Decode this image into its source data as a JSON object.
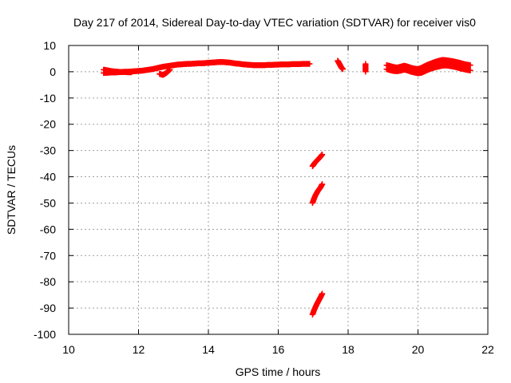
{
  "chart_data": {
    "type": "scatter",
    "title": "Day 217 of 2014, Sidereal Day-to-day VTEC variation (SDTVAR) for receiver vis0",
    "xlabel": "GPS time / hours",
    "ylabel": "SDTVAR / TECUs",
    "xlim": [
      10,
      22
    ],
    "ylim": [
      -100,
      10
    ],
    "x_ticks": [
      "10",
      "12",
      "14",
      "16",
      "18",
      "20",
      "22"
    ],
    "y_ticks": [
      "10",
      "0",
      "-10",
      "-20",
      "-30",
      "-40",
      "-50",
      "-60",
      "-70",
      "-80",
      "-90",
      "-100"
    ],
    "grid": true,
    "marker": "+",
    "color": "#ff0000",
    "series": [
      {
        "segments": [
          {
            "x": [
              11.0,
              11.1,
              11.2,
              11.3,
              11.4,
              11.5,
              11.6,
              11.7,
              11.8,
              11.9,
              12.0,
              12.1,
              12.2,
              12.3,
              12.4,
              12.5,
              12.6,
              12.7,
              12.8,
              12.9,
              13.0,
              13.1,
              13.2,
              13.3,
              13.4,
              13.5,
              13.6,
              13.7,
              13.8,
              13.9,
              14.0,
              14.1,
              14.2,
              14.3,
              14.4,
              14.5,
              14.6,
              14.7,
              14.8,
              14.9,
              15.0,
              15.1,
              15.2,
              15.3,
              15.4,
              15.5,
              15.6,
              15.7,
              15.8,
              15.9,
              16.0,
              16.1,
              16.2,
              16.3,
              16.4,
              16.5,
              16.6,
              16.7,
              16.8,
              16.9
            ],
            "y": [
              -0.5,
              -0.4,
              -0.3,
              -0.3,
              -0.2,
              -0.1,
              0.0,
              0.0,
              0.1,
              0.2,
              0.3,
              0.4,
              0.6,
              0.8,
              1.0,
              1.3,
              1.6,
              1.9,
              2.1,
              2.3,
              2.5,
              2.7,
              2.8,
              2.9,
              3.0,
              3.0,
              3.1,
              3.2,
              3.2,
              3.3,
              3.4,
              3.5,
              3.6,
              3.7,
              3.7,
              3.6,
              3.5,
              3.3,
              3.1,
              3.0,
              2.8,
              2.7,
              2.6,
              2.5,
              2.5,
              2.5,
              2.5,
              2.6,
              2.6,
              2.7,
              2.7,
              2.8,
              2.8,
              2.8,
              2.9,
              2.9,
              2.9,
              3.0,
              3.0,
              3.0
            ]
          },
          {
            "x": [
              11.0,
              11.08,
              11.16,
              11.24,
              11.32,
              11.4,
              11.5,
              11.6,
              11.7,
              11.8
            ],
            "y": [
              0.8,
              0.6,
              0.4,
              0.2,
              0.1,
              0.0,
              -0.1,
              -0.1,
              -0.2,
              -0.2
            ]
          },
          {
            "x": [
              12.6,
              12.65,
              12.7,
              12.75,
              12.8,
              12.85,
              12.9
            ],
            "y": [
              -0.8,
              -1.0,
              -1.2,
              -0.8,
              -0.4,
              0.2,
              0.8
            ]
          },
          {
            "x": [
              17.7,
              17.73,
              17.76,
              17.79,
              17.82,
              17.85
            ],
            "y": [
              4.2,
              3.5,
              2.8,
              2.0,
              1.4,
              1.0
            ]
          },
          {
            "x": [
              18.5,
              18.5,
              18.5
            ],
            "y": [
              3.0,
              1.5,
              0.0
            ]
          },
          {
            "x": [
              19.1,
              19.2,
              19.3,
              19.4,
              19.5,
              19.6,
              19.7,
              19.8,
              19.9,
              20.0,
              20.1,
              20.2,
              20.3,
              20.4,
              20.5,
              20.6,
              20.7,
              20.8,
              20.9,
              21.0,
              21.1,
              21.2,
              21.3,
              21.4,
              21.5
            ],
            "y": [
              2.5,
              2.2,
              1.8,
              1.6,
              1.9,
              2.3,
              2.0,
              1.5,
              1.2,
              1.0,
              1.5,
              2.2,
              2.8,
              3.3,
              3.8,
              4.2,
              4.5,
              4.4,
              4.2,
              4.0,
              3.7,
              3.4,
              3.0,
              2.7,
              2.5
            ]
          },
          {
            "x": [
              19.1,
              19.2,
              19.3,
              19.4,
              19.5,
              19.6,
              19.7,
              19.8,
              19.9,
              20.0,
              20.1,
              20.2,
              20.3,
              20.4,
              20.5,
              20.6,
              20.7,
              20.8,
              20.9,
              21.0,
              21.1,
              21.2,
              21.3,
              21.4,
              21.5
            ],
            "y": [
              1.0,
              0.6,
              0.3,
              0.2,
              0.4,
              0.8,
              0.5,
              0.0,
              -0.3,
              -0.6,
              -0.4,
              0.2,
              0.8,
              1.3,
              1.7,
              2.0,
              2.3,
              2.4,
              2.2,
              2.0,
              1.7,
              1.3,
              1.0,
              0.7,
              0.5
            ]
          },
          {
            "x": [
              16.98,
              17.02,
              17.06,
              17.1,
              17.14,
              17.18,
              17.22,
              17.26
            ],
            "y": [
              -36.0,
              -35.2,
              -34.5,
              -33.9,
              -33.4,
              -32.8,
              -32.2,
              -31.5
            ]
          },
          {
            "x": [
              16.98,
              17.02,
              17.06,
              17.1,
              17.14,
              17.18,
              17.22,
              17.26
            ],
            "y": [
              -50.0,
              -48.5,
              -47.2,
              -46.2,
              -45.3,
              -44.6,
              -43.8,
              -42.8
            ]
          },
          {
            "x": [
              16.98,
              17.02,
              17.06,
              17.1,
              17.14,
              17.18,
              17.22,
              17.26
            ],
            "y": [
              -92.5,
              -91.0,
              -89.8,
              -88.6,
              -87.6,
              -86.6,
              -85.6,
              -84.5
            ]
          }
        ]
      }
    ]
  }
}
